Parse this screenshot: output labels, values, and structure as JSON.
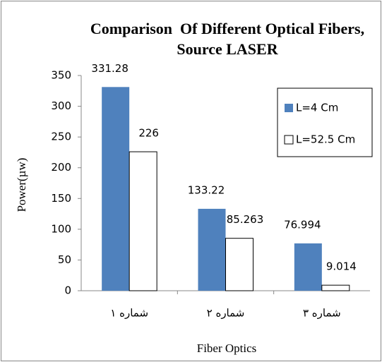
{
  "chart_data": {
    "type": "bar",
    "title": "Comparison  Of Different Optical Fibers, Source LASER",
    "x_label": "Fiber Optics",
    "y_label": "Power(µw)",
    "categories": [
      "شماره ۱",
      "شماره ۲",
      "شماره ۳"
    ],
    "series": [
      {
        "name": "L=4 Cm",
        "color": "#4f81bd",
        "values": [
          331.28,
          133.22,
          76.994
        ]
      },
      {
        "name": "L=52.5 Cm",
        "color": "#ffffff",
        "values": [
          226,
          85.263,
          9.014
        ]
      }
    ],
    "ylim": [
      0,
      350
    ],
    "yticks": [
      0,
      50,
      100,
      150,
      200,
      250,
      300,
      350
    ],
    "grid": false,
    "legend": "upper right"
  }
}
